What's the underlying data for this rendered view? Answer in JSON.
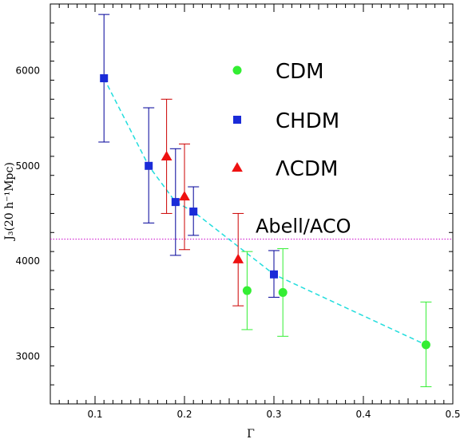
{
  "chart_data": {
    "type": "scatter",
    "xlabel": "Γ",
    "ylabel": "J₃(20 h⁻¹Mpc)",
    "xlim": [
      0.05,
      0.5
    ],
    "ylim": [
      2500,
      6700
    ],
    "x_ticks": [
      "0.1",
      "0.2",
      "0.3",
      "0.4",
      "0.5"
    ],
    "y_ticks": [
      "3000",
      "4000",
      "5000",
      "6000"
    ],
    "grid": false,
    "legend_position": "upper-right",
    "series": [
      {
        "name": "CDM",
        "marker": "circle",
        "color": "#33ee33",
        "points": [
          {
            "x": 0.27,
            "y": 3690,
            "yerr": [
              3280,
              4100
            ]
          },
          {
            "x": 0.31,
            "y": 3670,
            "yerr": [
              3210,
              4130
            ]
          },
          {
            "x": 0.47,
            "y": 3120,
            "yerr": [
              2680,
              3570
            ]
          }
        ]
      },
      {
        "name": "CHDM",
        "marker": "square",
        "color": "#1a2bd8",
        "error_color": "#000099",
        "points": [
          {
            "x": 0.11,
            "y": 5920,
            "yerr": [
              5250,
              6590
            ]
          },
          {
            "x": 0.16,
            "y": 5000,
            "yerr": [
              4400,
              5610
            ]
          },
          {
            "x": 0.19,
            "y": 4620,
            "yerr": [
              4060,
              5180
            ]
          },
          {
            "x": 0.21,
            "y": 4520,
            "yerr": [
              4270,
              4780
            ]
          },
          {
            "x": 0.3,
            "y": 3860,
            "yerr": [
              3620,
              4110
            ]
          }
        ]
      },
      {
        "name": "ΛCDM",
        "marker": "triangle",
        "color": "#ee1111",
        "error_color": "#cc0000",
        "points": [
          {
            "x": 0.18,
            "y": 5100,
            "yerr": [
              4500,
              5700
            ]
          },
          {
            "x": 0.2,
            "y": 4680,
            "yerr": [
              4120,
              5230
            ]
          },
          {
            "x": 0.26,
            "y": 4020,
            "yerr": [
              3530,
              4500
            ]
          }
        ]
      }
    ],
    "fit_line": {
      "style": "dashed",
      "color": "#22dddd",
      "x": [
        0.11,
        0.16,
        0.19,
        0.21,
        0.3,
        0.47
      ],
      "y": [
        5920,
        5000,
        4620,
        4520,
        3860,
        3120
      ]
    },
    "reference_line": {
      "label": "Abell/ACO",
      "y": 4230,
      "style": "dotted",
      "color": "#cc00cc"
    }
  }
}
